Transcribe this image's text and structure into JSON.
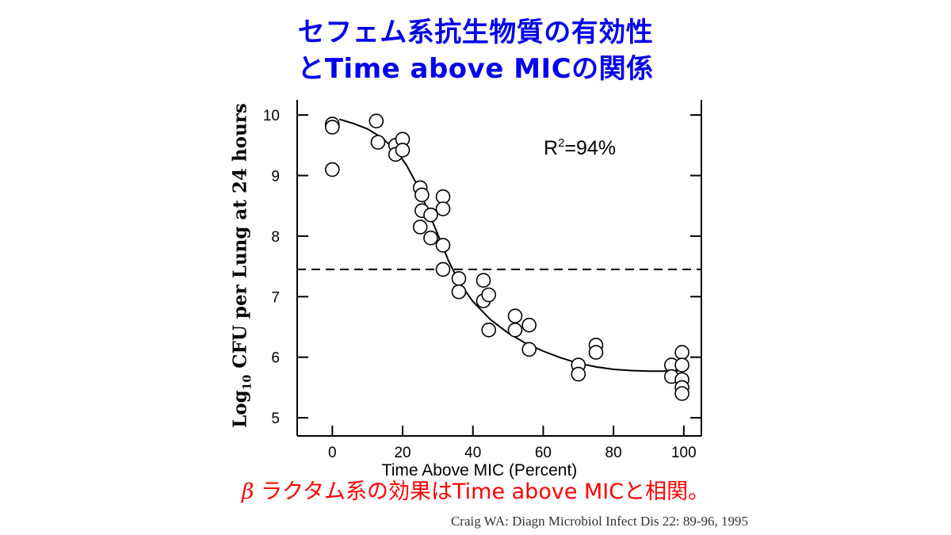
{
  "slide": {
    "title_line1": "セフェム系抗生物質の有効性",
    "title_line2": "とTime above MICの関係",
    "caption_greek": "β",
    "caption_text": "ラクタム系の効果はTime above MICと相関。",
    "citation": "Craig WA: Diagn Microbiol Infect Dis 22: 89-96, 1995",
    "title_color": "#0000ee",
    "caption_color": "#ff0000"
  },
  "chart_data": {
    "type": "scatter",
    "ylabel_main": "Log",
    "ylabel_sub": "10",
    "ylabel_rest": " CFU per Lung at 24 hours",
    "xlabel": "Time Above MIC (Percent)",
    "xlim": [
      -10,
      105
    ],
    "ylim": [
      4.7,
      10.25
    ],
    "xticks": [
      0,
      20,
      40,
      60,
      80,
      100
    ],
    "yticks": [
      5,
      6,
      7,
      8,
      9,
      10
    ],
    "annotation_main": "R",
    "annotation_sup": "2",
    "annotation_rest": "=94%",
    "threshold_y": 7.45,
    "grid": false,
    "points": [
      {
        "x": 0,
        "y": 9.85
      },
      {
        "x": 0,
        "y": 9.8
      },
      {
        "x": 0,
        "y": 9.1
      },
      {
        "x": 12.5,
        "y": 9.9
      },
      {
        "x": 13,
        "y": 9.55
      },
      {
        "x": 18,
        "y": 9.5
      },
      {
        "x": 18,
        "y": 9.35
      },
      {
        "x": 20,
        "y": 9.6
      },
      {
        "x": 20,
        "y": 9.42
      },
      {
        "x": 25,
        "y": 8.8
      },
      {
        "x": 25.5,
        "y": 8.68
      },
      {
        "x": 25.5,
        "y": 8.42
      },
      {
        "x": 25,
        "y": 8.15
      },
      {
        "x": 28,
        "y": 8.35
      },
      {
        "x": 28,
        "y": 7.97
      },
      {
        "x": 31.5,
        "y": 8.65
      },
      {
        "x": 31.5,
        "y": 8.45
      },
      {
        "x": 31.5,
        "y": 7.85
      },
      {
        "x": 31.5,
        "y": 7.45
      },
      {
        "x": 36,
        "y": 7.3
      },
      {
        "x": 36,
        "y": 7.08
      },
      {
        "x": 43,
        "y": 7.27
      },
      {
        "x": 43,
        "y": 6.93
      },
      {
        "x": 44.5,
        "y": 7.03
      },
      {
        "x": 44.5,
        "y": 6.45
      },
      {
        "x": 52,
        "y": 6.68
      },
      {
        "x": 52,
        "y": 6.45
      },
      {
        "x": 56,
        "y": 6.53
      },
      {
        "x": 56,
        "y": 6.13
      },
      {
        "x": 70,
        "y": 5.87
      },
      {
        "x": 70,
        "y": 5.72
      },
      {
        "x": 75,
        "y": 6.2
      },
      {
        "x": 75,
        "y": 6.08
      },
      {
        "x": 96.5,
        "y": 5.87
      },
      {
        "x": 96.5,
        "y": 5.68
      },
      {
        "x": 99.5,
        "y": 6.08
      },
      {
        "x": 99.5,
        "y": 5.87
      },
      {
        "x": 99.5,
        "y": 5.63
      },
      {
        "x": 99.5,
        "y": 5.5
      },
      {
        "x": 99.5,
        "y": 5.4
      }
    ],
    "fit_curve": [
      {
        "x": 2,
        "y": 9.93
      },
      {
        "x": 6,
        "y": 9.86
      },
      {
        "x": 10,
        "y": 9.77
      },
      {
        "x": 14,
        "y": 9.63
      },
      {
        "x": 18,
        "y": 9.42
      },
      {
        "x": 21,
        "y": 9.18
      },
      {
        "x": 24,
        "y": 8.86
      },
      {
        "x": 27,
        "y": 8.45
      },
      {
        "x": 30,
        "y": 8.03
      },
      {
        "x": 33,
        "y": 7.6
      },
      {
        "x": 36,
        "y": 7.25
      },
      {
        "x": 40,
        "y": 6.92
      },
      {
        "x": 45,
        "y": 6.62
      },
      {
        "x": 50,
        "y": 6.4
      },
      {
        "x": 55,
        "y": 6.23
      },
      {
        "x": 60,
        "y": 6.1
      },
      {
        "x": 65,
        "y": 5.99
      },
      {
        "x": 70,
        "y": 5.9
      },
      {
        "x": 75,
        "y": 5.84
      },
      {
        "x": 80,
        "y": 5.8
      },
      {
        "x": 85,
        "y": 5.78
      },
      {
        "x": 90,
        "y": 5.77
      },
      {
        "x": 95,
        "y": 5.77
      },
      {
        "x": 99,
        "y": 5.78
      }
    ]
  }
}
